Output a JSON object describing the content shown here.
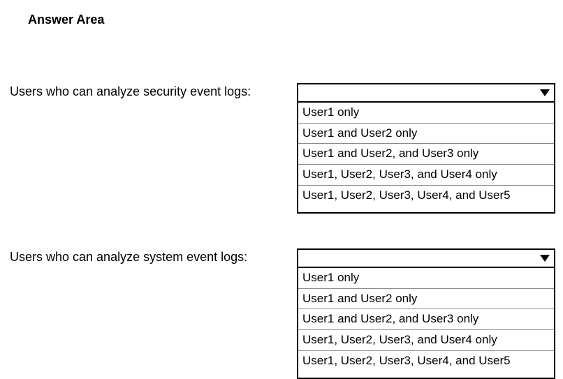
{
  "heading": "Answer Area",
  "questions": [
    {
      "label": "Users who can analyze security event logs:",
      "options": [
        "User1 only",
        "User1 and User2 only",
        "User1 and User2, and User3 only",
        "User1, User2, User3, and User4 only",
        "User1, User2, User3, User4, and User5"
      ]
    },
    {
      "label": "Users who can analyze system event logs:",
      "options": [
        "User1 only",
        "User1 and User2 only",
        "User1 and User2, and User3 only",
        "User1, User2, User3, and User4 only",
        "User1, User2, User3, User4, and User5"
      ]
    }
  ],
  "style": {
    "background_color": "#ffffff",
    "text_color": "#000000",
    "border_color": "#000000",
    "option_divider_color": "#888888",
    "heading_fontsize": 18,
    "label_fontsize": 18,
    "option_fontsize": 17,
    "dropdown_width": 370,
    "label_width": 415
  }
}
